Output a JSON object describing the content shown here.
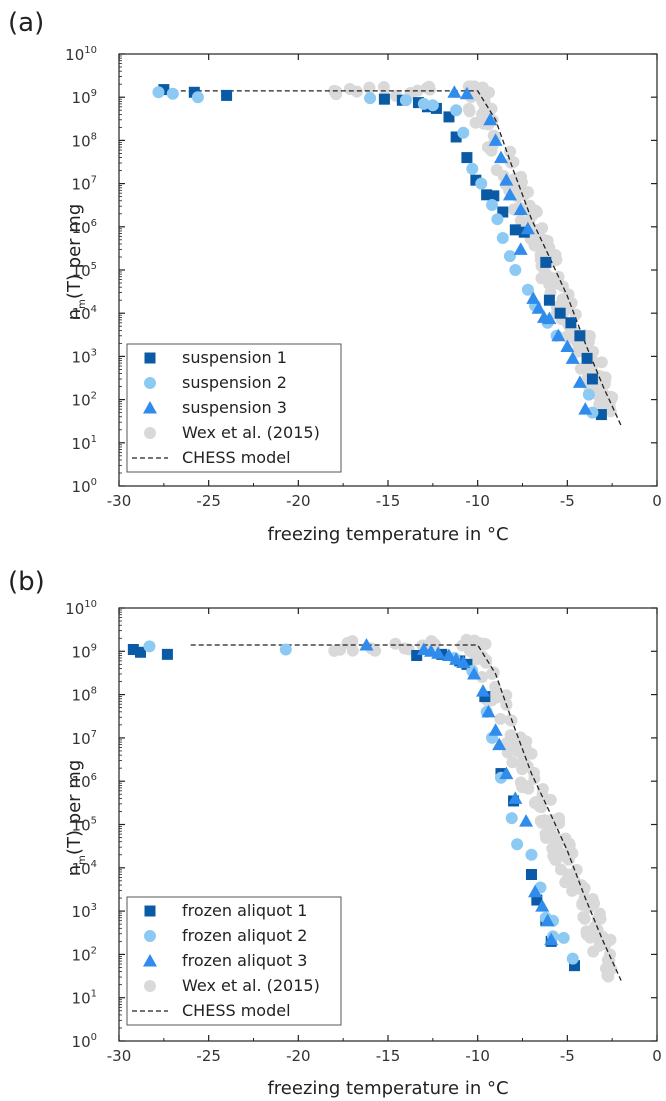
{
  "colors": {
    "series1": "#0b5aa5",
    "series2": "#8ccaf4",
    "series3": "#2f8cec",
    "wex": "#d9d9d9",
    "model": "#222222"
  },
  "chart_data": [
    {
      "panel_label": "(a)",
      "type": "scatter",
      "xlabel": "freezing temperature in °C",
      "ylabel_main": "n",
      "ylabel_sub": "m",
      "ylabel_rest": "(T) per mg",
      "xlim": [
        -30,
        0
      ],
      "ylim_log10": [
        0,
        10
      ],
      "y_scale": "log",
      "x_ticks": [
        "-30",
        "-25",
        "-20",
        "-15",
        "-10",
        "-5",
        "0"
      ],
      "y_tick_base": "10",
      "y_tick_exps": [
        "0",
        "1",
        "2",
        "3",
        "4",
        "5",
        "6",
        "7",
        "8",
        "9",
        "10"
      ],
      "legend_position": "bottom-left",
      "series": [
        {
          "name": "suspension 1",
          "marker": "square",
          "color_key": "series1",
          "points": [
            [
              -27.5,
              1500000000.0
            ],
            [
              -25.8,
              1300000000.0
            ],
            [
              -24,
              1100000000.0
            ],
            [
              -15.2,
              900000000.0
            ],
            [
              -14.2,
              850000000.0
            ],
            [
              -13.3,
              750000000.0
            ],
            [
              -12.8,
              600000000.0
            ],
            [
              -12.3,
              550000000.0
            ],
            [
              -11.6,
              350000000.0
            ],
            [
              -11.2,
              120000000.0
            ],
            [
              -10.6,
              40000000.0
            ],
            [
              -10.1,
              12000000.0
            ],
            [
              -9.5,
              5500000.0
            ],
            [
              -9.1,
              5200000.0
            ],
            [
              -8.6,
              2200000.0
            ],
            [
              -7.9,
              850000.0
            ],
            [
              -7.4,
              750000.0
            ],
            [
              -6.2,
              150000.0
            ],
            [
              -6.0,
              20000.0
            ],
            [
              -5.4,
              10000.0
            ],
            [
              -4.8,
              6000.0
            ],
            [
              -4.3,
              3000.0
            ],
            [
              -3.9,
              900.0
            ],
            [
              -3.6,
              300.0
            ],
            [
              -3.1,
              45
            ]
          ]
        },
        {
          "name": "suspension 2",
          "marker": "circle",
          "color_key": "series2",
          "points": [
            [
              -27.8,
              1300000000.0
            ],
            [
              -27.0,
              1200000000.0
            ],
            [
              -25.6,
              1000000000.0
            ],
            [
              -16.0,
              950000000.0
            ],
            [
              -14.0,
              850000000.0
            ],
            [
              -13.0,
              700000000.0
            ],
            [
              -12.5,
              650000000.0
            ],
            [
              -11.2,
              500000000.0
            ],
            [
              -10.8,
              150000000.0
            ],
            [
              -10.3,
              22000000.0
            ],
            [
              -9.8,
              10000000.0
            ],
            [
              -9.2,
              3200000.0
            ],
            [
              -8.9,
              1500000.0
            ],
            [
              -8.6,
              550000.0
            ],
            [
              -8.2,
              210000.0
            ],
            [
              -7.9,
              100000.0
            ],
            [
              -7.2,
              35000.0
            ],
            [
              -6.8,
              15000.0
            ],
            [
              -6.1,
              6000.0
            ],
            [
              -5.6,
              3000.0
            ],
            [
              -3.8,
              130.0
            ],
            [
              -3.6,
              50
            ]
          ]
        },
        {
          "name": "suspension 3",
          "marker": "triangle",
          "color_key": "series3",
          "points": [
            [
              -11.3,
              1300000000.0
            ],
            [
              -10.6,
              1200000000.0
            ],
            [
              -9.3,
              300000000.0
            ],
            [
              -9.0,
              100000000.0
            ],
            [
              -8.7,
              40000000.0
            ],
            [
              -8.4,
              12000000.0
            ],
            [
              -8.2,
              5500000.0
            ],
            [
              -7.6,
              2500000.0
            ],
            [
              -7.2,
              900000.0
            ],
            [
              -7.6,
              300000.0
            ],
            [
              -6.9,
              22000.0
            ],
            [
              -6.6,
              13000.0
            ],
            [
              -6.3,
              8000.0
            ],
            [
              -6.0,
              7500.0
            ],
            [
              -5.5,
              3000.0
            ],
            [
              -5.0,
              1700.0
            ],
            [
              -4.7,
              900.0
            ],
            [
              -4.3,
              250.0
            ],
            [
              -4.0,
              60
            ]
          ]
        },
        {
          "name": "Wex et al. (2015)",
          "marker": "circle",
          "color_key": "wex",
          "points": []
        },
        {
          "name": "CHESS model",
          "marker": "dashed-line",
          "color_key": "model",
          "points": [
            [
              -27,
              1400000000.0
            ],
            [
              -10,
              1400000000.0
            ],
            [
              -9.0,
              300000000.0
            ],
            [
              -8,
              20000000.0
            ],
            [
              -7,
              1500000.0
            ],
            [
              -6,
              200000.0
            ],
            [
              -5,
              25000.0
            ],
            [
              -4,
              2000.0
            ],
            [
              -3,
              200.0
            ],
            [
              -2,
              25
            ]
          ]
        }
      ]
    },
    {
      "panel_label": "(b)",
      "type": "scatter",
      "xlabel": "freezing temperature in °C",
      "ylabel_main": "n",
      "ylabel_sub": "m",
      "ylabel_rest": "(T) per mg",
      "xlim": [
        -30,
        0
      ],
      "ylim_log10": [
        0,
        10
      ],
      "y_scale": "log",
      "x_ticks": [
        "-30",
        "-25",
        "-20",
        "-15",
        "-10",
        "-5",
        "0"
      ],
      "y_tick_base": "10",
      "y_tick_exps": [
        "0",
        "1",
        "2",
        "3",
        "4",
        "5",
        "6",
        "7",
        "8",
        "9",
        "10"
      ],
      "legend_position": "bottom-left",
      "series": [
        {
          "name": "frozen aliquot 1",
          "marker": "square",
          "color_key": "series1",
          "points": [
            [
              -29.2,
              1100000000.0
            ],
            [
              -28.8,
              950000000.0
            ],
            [
              -27.3,
              850000000.0
            ],
            [
              -13.4,
              800000000.0
            ],
            [
              -12.0,
              850000000.0
            ],
            [
              -11.0,
              600000000.0
            ],
            [
              -10.6,
              500000000.0
            ],
            [
              -9.6,
              90000000.0
            ],
            [
              -8.7,
              1500000.0
            ],
            [
              -8.0,
              350000.0
            ],
            [
              -7.0,
              7000.0
            ],
            [
              -6.7,
              1800.0
            ],
            [
              -6.2,
              600.0
            ],
            [
              -5.9,
              200.0
            ],
            [
              -4.6,
              55
            ]
          ]
        },
        {
          "name": "frozen aliquot 2",
          "marker": "circle",
          "color_key": "series2",
          "points": [
            [
              -28.3,
              1300000000.0
            ],
            [
              -20.7,
              1100000000.0
            ],
            [
              -11.3,
              700000000.0
            ],
            [
              -10.3,
              350000000.0
            ],
            [
              -9.5,
              40000000.0
            ],
            [
              -9.2,
              10000000.0
            ],
            [
              -8.7,
              1200000.0
            ],
            [
              -8.1,
              140000.0
            ],
            [
              -7.8,
              35000.0
            ],
            [
              -7.0,
              20000.0
            ],
            [
              -6.5,
              3500.0
            ],
            [
              -6.2,
              700.0
            ],
            [
              -5.8,
              600.0
            ],
            [
              -5.8,
              260.0
            ],
            [
              -5.2,
              240.0
            ],
            [
              -4.7,
              80
            ]
          ]
        },
        {
          "name": "frozen aliquot 3",
          "marker": "triangle",
          "color_key": "series3",
          "points": [
            [
              -16.2,
              1400000000.0
            ],
            [
              -13.0,
              1100000000.0
            ],
            [
              -12.6,
              1000000000.0
            ],
            [
              -12.2,
              900000000.0
            ],
            [
              -11.6,
              800000000.0
            ],
            [
              -11.2,
              650000000.0
            ],
            [
              -10.8,
              550000000.0
            ],
            [
              -10.2,
              300000000.0
            ],
            [
              -9.7,
              120000000.0
            ],
            [
              -9.4,
              40000000.0
            ],
            [
              -9.0,
              15000000.0
            ],
            [
              -8.8,
              7000000.0
            ],
            [
              -8.4,
              1500000.0
            ],
            [
              -7.9,
              400000.0
            ],
            [
              -7.3,
              120000.0
            ],
            [
              -6.8,
              2800.0
            ],
            [
              -6.4,
              1300.0
            ],
            [
              -6.1,
              600.0
            ],
            [
              -5.9,
              220.0
            ]
          ]
        },
        {
          "name": "Wex et al. (2015)",
          "marker": "circle",
          "color_key": "wex",
          "points": []
        },
        {
          "name": "CHESS model",
          "marker": "dashed-line",
          "color_key": "model",
          "points": [
            [
              -26,
              1400000000.0
            ],
            [
              -10,
              1400000000.0
            ],
            [
              -9.0,
              300000000.0
            ],
            [
              -8,
              20000000.0
            ],
            [
              -7,
              1500000.0
            ],
            [
              -6,
              200000.0
            ],
            [
              -5,
              25000.0
            ],
            [
              -4,
              2000.0
            ],
            [
              -3,
              200.0
            ],
            [
              -2,
              25
            ]
          ]
        }
      ]
    }
  ]
}
